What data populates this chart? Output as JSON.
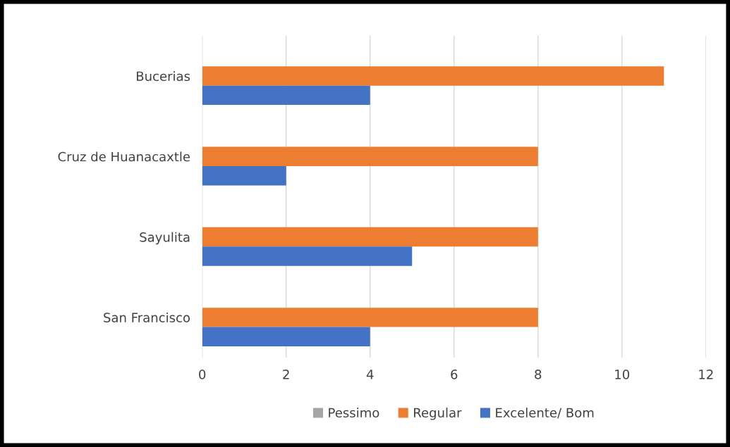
{
  "chart_data": {
    "type": "bar",
    "orientation": "horizontal",
    "categories": [
      "Bucerias",
      "Cruz de Huanacaxtle",
      "Sayulita",
      "San Francisco"
    ],
    "series": [
      {
        "name": "Pessimo",
        "color": "#a5a5a5",
        "values": [
          0,
          0,
          0,
          0
        ]
      },
      {
        "name": "Regular",
        "color": "#ed7d31",
        "values": [
          11,
          8,
          8,
          8
        ]
      },
      {
        "name": "Excelente/ Bom",
        "color": "#4472c4",
        "values": [
          4,
          2,
          5,
          4
        ]
      }
    ],
    "xlim": [
      0,
      12
    ],
    "xticks": [
      0,
      2,
      4,
      6,
      8,
      10,
      12
    ],
    "grid": "x",
    "legend": "bottom"
  }
}
